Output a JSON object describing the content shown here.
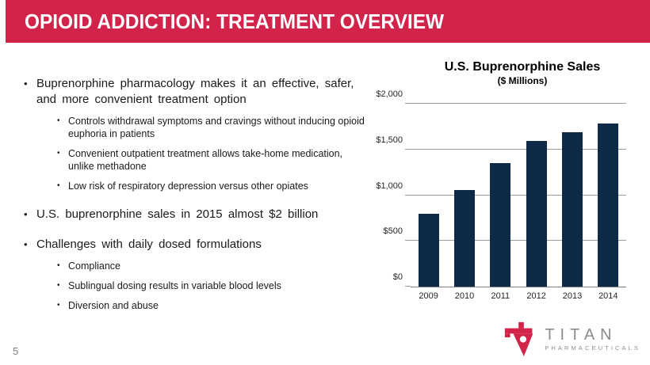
{
  "slide": {
    "title": "OPIOID ADDICTION: TREATMENT OVERVIEW",
    "page_number": "5"
  },
  "colors": {
    "header_red": "#D2234B",
    "bar_navy": "#0E2A47",
    "gridline_gray": "#9b9b9b",
    "logo_gray": "#8a8d90"
  },
  "bullets": [
    {
      "level": 1,
      "text": "Buprenorphine pharmacology makes it an effective, safer, and more convenient treatment option"
    },
    {
      "level": 2,
      "text": "Controls withdrawal symptoms and cravings without inducing opioid euphoria in patients"
    },
    {
      "level": 2,
      "text": "Convenient outpatient treatment allows take-home medication, unlike methadone"
    },
    {
      "level": 2,
      "text": "Low risk of respiratory depression versus other opiates"
    },
    {
      "level": 1,
      "text": "U.S. buprenorphine sales in 2015 almost $2 billion"
    },
    {
      "level": 1,
      "text": "Challenges with daily dosed formulations"
    },
    {
      "level": 2,
      "text": "Compliance"
    },
    {
      "level": 2,
      "text": "Sublingual dosing results in variable blood levels"
    },
    {
      "level": 2,
      "text": "Diversion and abuse"
    }
  ],
  "chart_data": {
    "type": "bar",
    "title": "U.S. Buprenorphine Sales",
    "subtitle": "($ Millions)",
    "categories": [
      "2009",
      "2010",
      "2011",
      "2012",
      "2013",
      "2014"
    ],
    "values": [
      800,
      1060,
      1350,
      1595,
      1690,
      1785
    ],
    "xlabel": "",
    "ylabel": "",
    "ylim": [
      0,
      2000
    ],
    "yticks": [
      {
        "value": 0,
        "label": "$0"
      },
      {
        "value": 500,
        "label": "$500"
      },
      {
        "value": 1000,
        "label": "$1,000"
      },
      {
        "value": 1500,
        "label": "$1,500"
      },
      {
        "value": 2000,
        "label": "$2,000"
      }
    ],
    "bar_color": "#0E2A47",
    "gridlines": true,
    "legend": "none"
  },
  "logo": {
    "name": "TITAN",
    "subtext": "PHARMACEUTICALS",
    "glyph_icon": "titan-t-triangle-icon"
  }
}
